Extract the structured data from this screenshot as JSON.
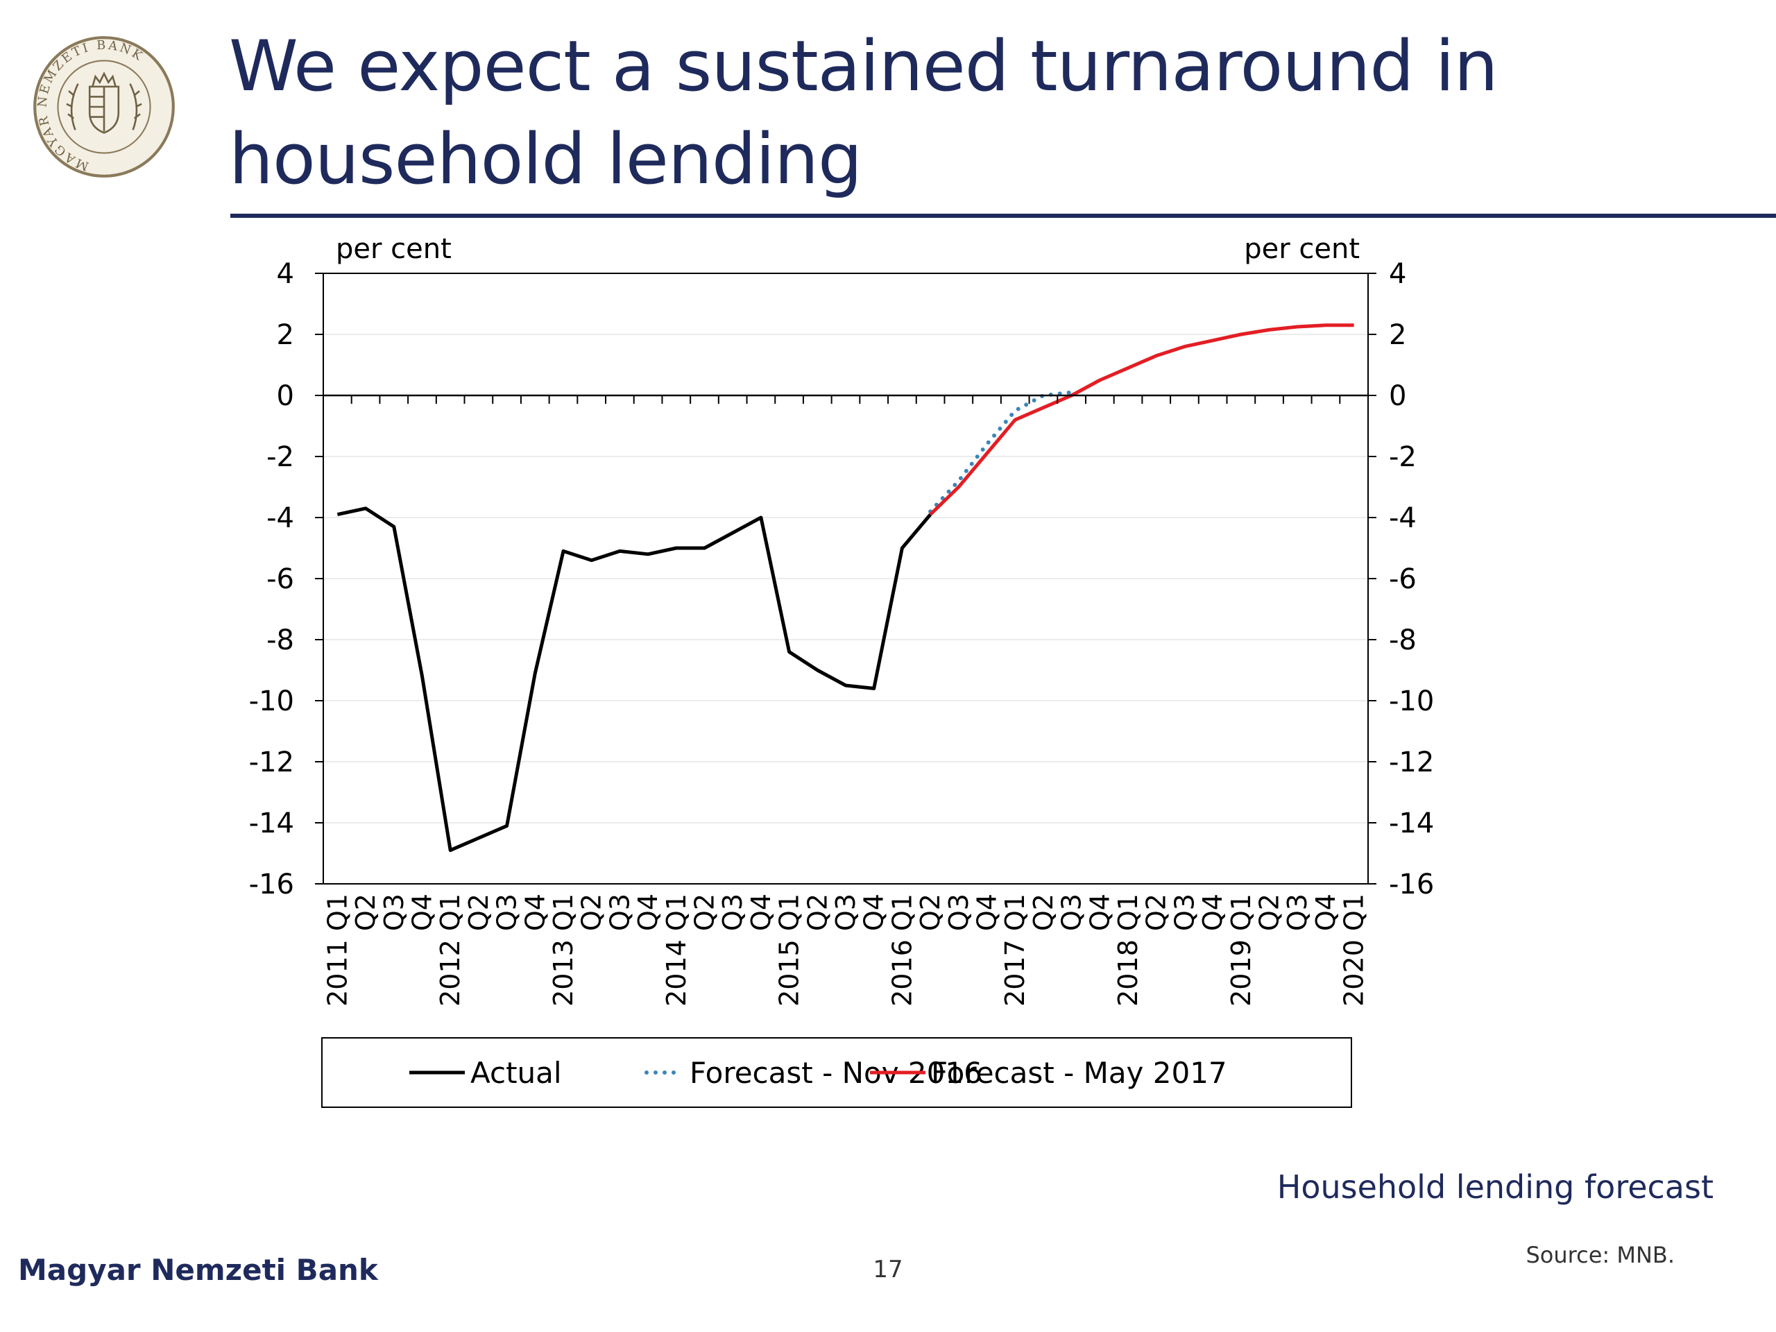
{
  "slide": {
    "title": "We expect a sustained turnaround in household lending",
    "caption": "Household lending forecast",
    "source": "Source: MNB.",
    "footer_brand": "Magyar Nemzeti Bank",
    "page_number": "17",
    "logo": {
      "icon": "mnb-seal-logo",
      "text": "MAGYAR NEMZETI BANK",
      "colors": {
        "ring": "#8a7a5a",
        "face": "#f4efe3"
      }
    }
  },
  "colors": {
    "title": "#1f2a5c",
    "actual": "#000000",
    "forecast_nov_2016": "#3b86b8",
    "forecast_may_2017": "#e31e24"
  },
  "chart_data": {
    "type": "line",
    "y_unit_label_left": "per cent",
    "y_unit_label_right": "per cent",
    "ylim": [
      -16,
      4
    ],
    "y_ticks": [
      4,
      2,
      0,
      -2,
      -4,
      -6,
      -8,
      -10,
      -12,
      -14,
      -16
    ],
    "grid": true,
    "legend_position": "bottom",
    "categories": [
      "2011 Q1",
      "Q2",
      "Q3",
      "Q4",
      "2012 Q1",
      "Q2",
      "Q3",
      "Q4",
      "2013 Q1",
      "Q2",
      "Q3",
      "Q4",
      "2014 Q1",
      "Q2",
      "Q3",
      "Q4",
      "2015 Q1",
      "Q2",
      "Q3",
      "Q4",
      "2016 Q1",
      "Q2",
      "Q3",
      "Q4",
      "2017 Q1",
      "Q2",
      "Q3",
      "Q4",
      "2018 Q1",
      "Q2",
      "Q3",
      "Q4",
      "2019 Q1",
      "Q2",
      "Q3",
      "Q4",
      "2020 Q1"
    ],
    "series": [
      {
        "name": "Actual",
        "style": "solid",
        "color": "#000000",
        "values": [
          -3.9,
          -3.7,
          -4.3,
          -9.2,
          -14.9,
          -14.5,
          -14.1,
          -9.1,
          -5.1,
          -5.4,
          -5.1,
          -5.2,
          -5.0,
          -5.0,
          -4.5,
          -4.0,
          -8.4,
          -9.0,
          -9.5,
          -9.6,
          -5.0,
          -3.9,
          null,
          null,
          null,
          null,
          null,
          null,
          null,
          null,
          null,
          null,
          null,
          null,
          null,
          null,
          null
        ]
      },
      {
        "name": "Forecast - Nov 2016",
        "style": "dotted",
        "color": "#3b86b8",
        "values": [
          null,
          null,
          null,
          null,
          null,
          null,
          null,
          null,
          null,
          null,
          null,
          null,
          null,
          null,
          null,
          null,
          null,
          null,
          null,
          null,
          null,
          -3.8,
          -2.8,
          -1.6,
          -0.5,
          0.0,
          0.1,
          null,
          null,
          null,
          null,
          null,
          null,
          null,
          null,
          null,
          null
        ]
      },
      {
        "name": "Forecast - May 2017",
        "style": "solid",
        "color": "#e31e24",
        "values": [
          null,
          null,
          null,
          null,
          null,
          null,
          null,
          null,
          null,
          null,
          null,
          null,
          null,
          null,
          null,
          null,
          null,
          null,
          null,
          null,
          null,
          -3.9,
          -3.0,
          -1.9,
          -0.8,
          -0.4,
          0.0,
          0.5,
          0.9,
          1.3,
          1.6,
          1.8,
          2.0,
          2.15,
          2.25,
          2.3,
          2.3
        ]
      }
    ]
  }
}
